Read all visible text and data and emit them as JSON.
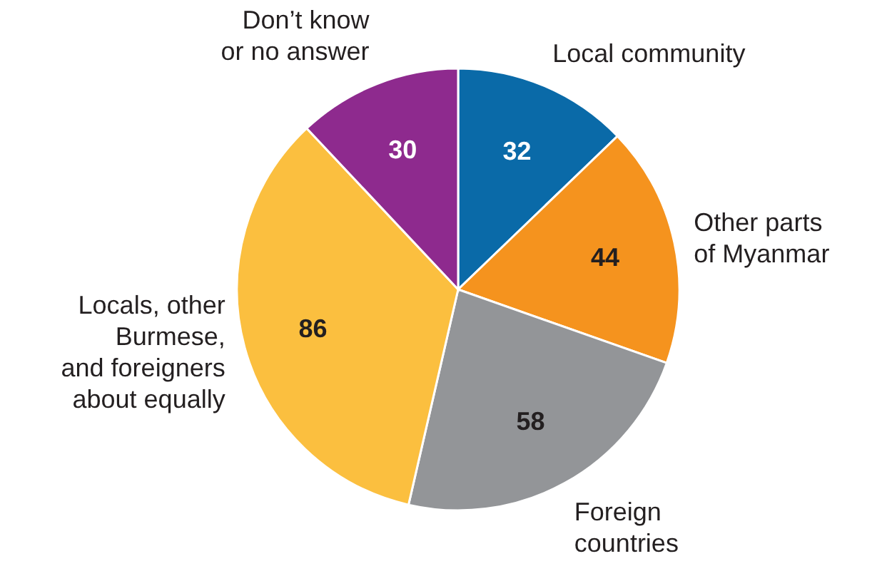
{
  "chart_data": {
    "type": "pie",
    "categories": [
      "Local community",
      "Other parts\nof Myanmar",
      "Foreign\ncountries",
      "Locals, other\nBurmese,\nand foreigners\nabout equally",
      "Don’t know\nor no answer"
    ],
    "values": [
      32,
      44,
      58,
      86,
      30
    ],
    "colors": [
      "#0a6aa8",
      "#f5931e",
      "#939598",
      "#fbbf3f",
      "#8e2a8e"
    ],
    "data_labels": true
  }
}
